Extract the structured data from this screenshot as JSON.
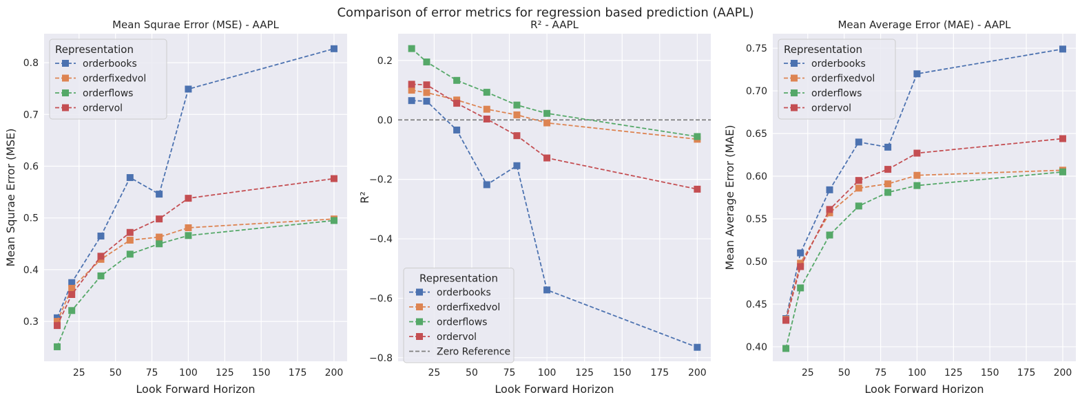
{
  "figure_title": "Comparison of error metrics for regression based prediction (AAPL)",
  "colors": {
    "orderbooks": "#4c72b0",
    "orderfixedvol": "#dd8452",
    "orderflows": "#55a868",
    "ordervol": "#c44e52",
    "zero_reference": "#7f7f7f",
    "panel_bg": "#eaeaf2",
    "grid": "#ffffff"
  },
  "chart_data": [
    {
      "type": "line",
      "title": "Mean Squrae Error (MSE) - AAPL",
      "xlabel": "Look Forward Horizon",
      "ylabel": "Mean Squrae Error (MSE)",
      "x": [
        10,
        20,
        40,
        60,
        80,
        100,
        200
      ],
      "xlim": [
        1,
        209
      ],
      "ylim": [
        0.223,
        0.856
      ],
      "xticks": [
        25,
        50,
        75,
        100,
        125,
        150,
        175,
        200
      ],
      "yticks": [
        0.3,
        0.4,
        0.5,
        0.6,
        0.7,
        0.8
      ],
      "ytick_labels": [
        "0.3",
        "0.4",
        "0.5",
        "0.6",
        "0.7",
        "0.8"
      ],
      "grid": true,
      "legend": {
        "title": "Representation",
        "location": "upper left"
      },
      "series": [
        {
          "name": "orderbooks",
          "values": [
            0.307,
            0.375,
            0.465,
            0.578,
            0.546,
            0.749,
            0.827
          ]
        },
        {
          "name": "orderfixedvol",
          "values": [
            0.3,
            0.364,
            0.42,
            0.457,
            0.463,
            0.481,
            0.498
          ]
        },
        {
          "name": "orderflows",
          "values": [
            0.251,
            0.321,
            0.388,
            0.43,
            0.45,
            0.466,
            0.495
          ]
        },
        {
          "name": "ordervol",
          "values": [
            0.292,
            0.352,
            0.426,
            0.472,
            0.498,
            0.538,
            0.576
          ]
        }
      ],
      "reference_line": null
    },
    {
      "type": "line",
      "title": "R² - AAPL",
      "xlabel": "Look Forward Horizon",
      "ylabel": "R²",
      "x": [
        10,
        20,
        40,
        60,
        80,
        100,
        200
      ],
      "xlim": [
        1,
        209
      ],
      "ylim": [
        -0.812,
        0.29
      ],
      "xticks": [
        25,
        50,
        75,
        100,
        125,
        150,
        175,
        200
      ],
      "yticks": [
        0.2,
        0.0,
        -0.2,
        -0.4,
        -0.6,
        -0.8
      ],
      "ytick_labels": [
        "0.2",
        "0.0",
        "−0.2",
        "−0.4",
        "−0.6",
        "−0.8"
      ],
      "grid": true,
      "legend": {
        "title": "Representation",
        "location": "lower left"
      },
      "series": [
        {
          "name": "orderbooks",
          "values": [
            0.065,
            0.063,
            -0.034,
            -0.218,
            -0.154,
            -0.572,
            -0.765
          ]
        },
        {
          "name": "orderfixedvol",
          "values": [
            0.1,
            0.092,
            0.067,
            0.036,
            0.017,
            -0.01,
            -0.065
          ]
        },
        {
          "name": "orderflows",
          "values": [
            0.24,
            0.195,
            0.133,
            0.093,
            0.05,
            0.022,
            -0.056
          ]
        },
        {
          "name": "ordervol",
          "values": [
            0.12,
            0.118,
            0.056,
            0.003,
            -0.053,
            -0.128,
            -0.233
          ]
        }
      ],
      "reference_line": {
        "name": "Zero Reference",
        "y": 0
      }
    },
    {
      "type": "line",
      "title": "Mean Average Error (MAE) - AAPL",
      "xlabel": "Look Forward Horizon",
      "ylabel": "Mean Average Error (MAE)",
      "x": [
        10,
        20,
        40,
        60,
        80,
        100,
        200
      ],
      "xlim": [
        1,
        209
      ],
      "ylim": [
        0.383,
        0.767
      ],
      "xticks": [
        25,
        50,
        75,
        100,
        125,
        150,
        175,
        200
      ],
      "yticks": [
        0.4,
        0.45,
        0.5,
        0.55,
        0.6,
        0.65,
        0.7,
        0.75
      ],
      "ytick_labels": [
        "0.40",
        "0.45",
        "0.50",
        "0.55",
        "0.60",
        "0.65",
        "0.70",
        "0.75"
      ],
      "grid": true,
      "legend": {
        "title": "Representation",
        "location": "upper left"
      },
      "series": [
        {
          "name": "orderbooks",
          "values": [
            0.433,
            0.51,
            0.584,
            0.64,
            0.634,
            0.72,
            0.749
          ]
        },
        {
          "name": "orderfixedvol",
          "values": [
            0.432,
            0.498,
            0.557,
            0.586,
            0.591,
            0.601,
            0.607
          ]
        },
        {
          "name": "orderflows",
          "values": [
            0.398,
            0.469,
            0.531,
            0.565,
            0.581,
            0.589,
            0.605
          ]
        },
        {
          "name": "ordervol",
          "values": [
            0.431,
            0.494,
            0.561,
            0.595,
            0.608,
            0.627,
            0.644
          ]
        }
      ],
      "reference_line": null
    }
  ]
}
